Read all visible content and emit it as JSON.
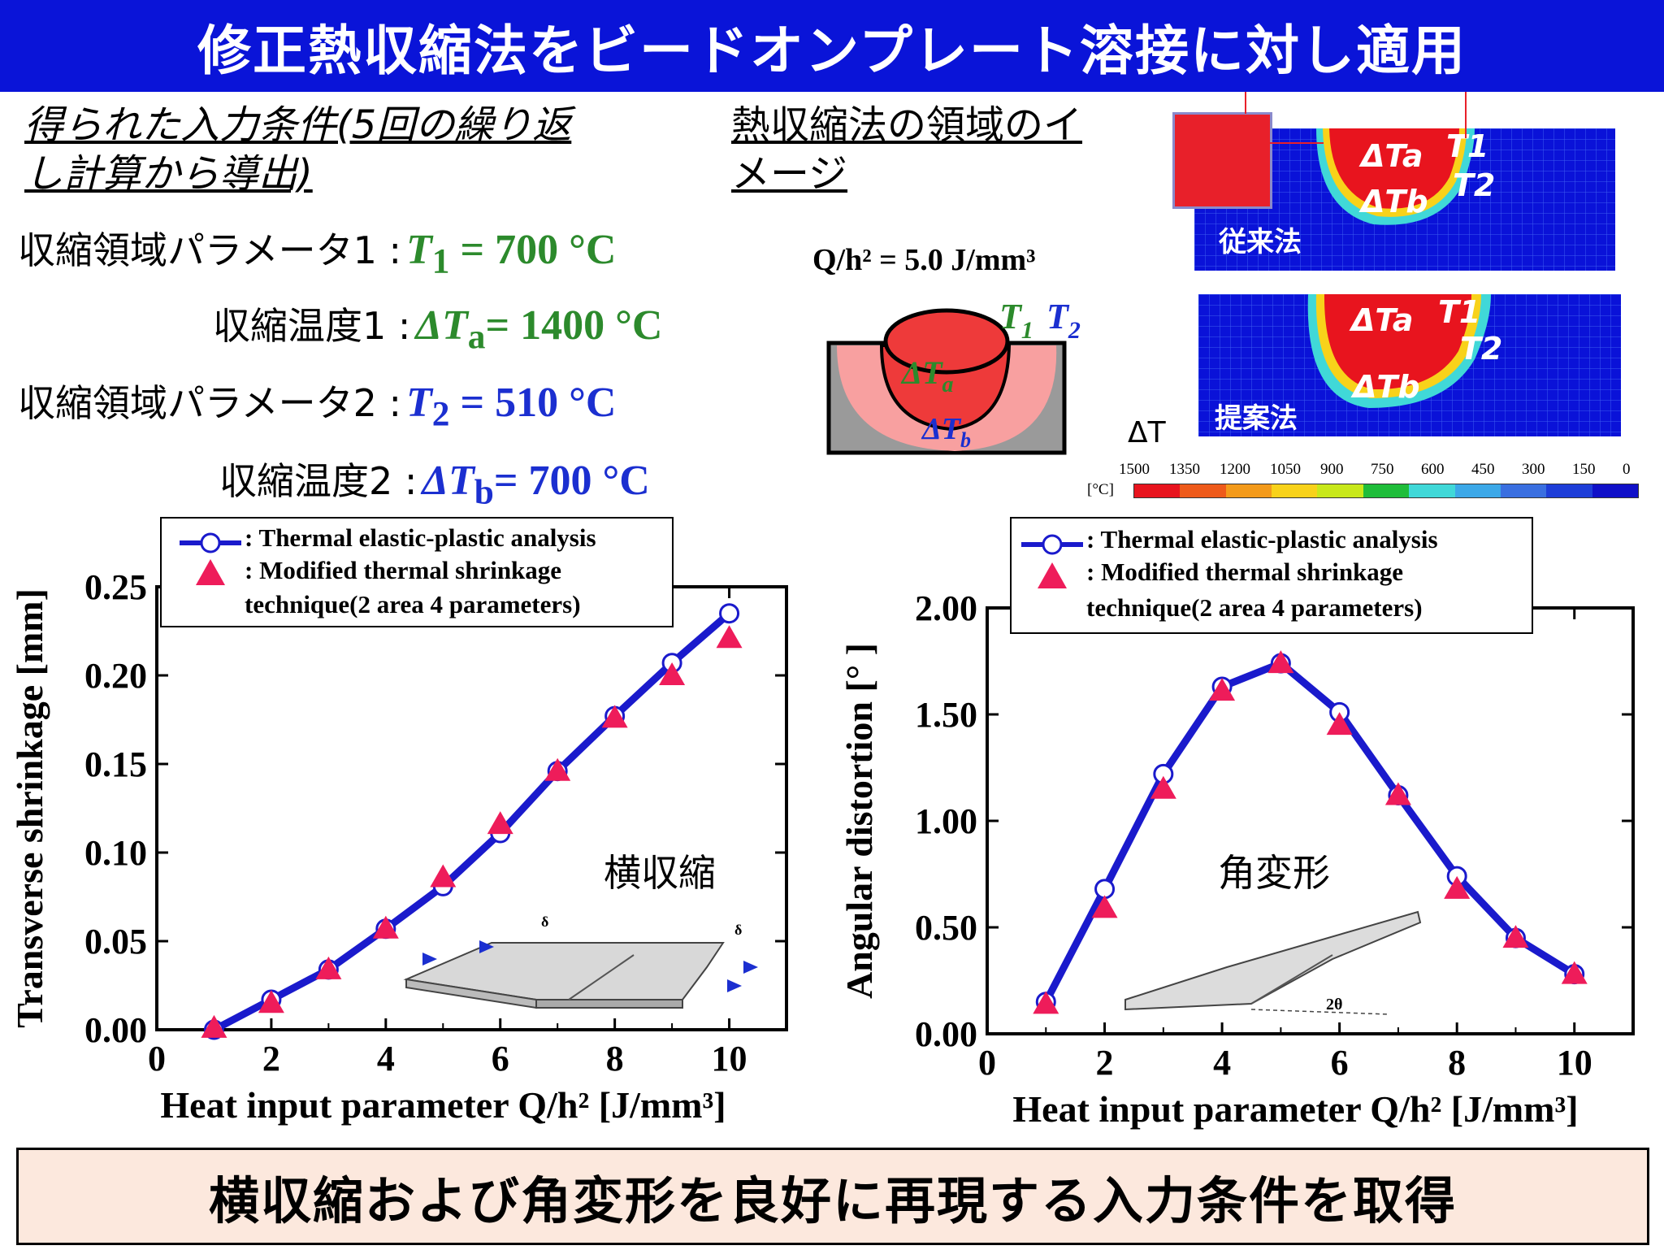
{
  "title": "修正熱収縮法をビードオンプレート溶接に対し適用",
  "left_heading": "得られた入力条件(5回の繰り返し計算から導出)",
  "left_heading_lines": [
    "得られた入力条件(5回の繰り返",
    "し計算から導出)"
  ],
  "params": [
    {
      "label": "収縮領域パラメータ1 :",
      "symbol": "T",
      "sub": "1",
      "value": " = 700 °C",
      "color": "green"
    },
    {
      "label": "収縮温度1 :",
      "symbol": "ΔT",
      "sub": "a",
      "value": "= 1400 °C",
      "color": "green"
    },
    {
      "label": "収縮領域パラメータ2 :",
      "symbol": "T",
      "sub": "2",
      "value": " = 510 °C",
      "color": "blue"
    },
    {
      "label": "収縮温度2 :",
      "symbol": "ΔT",
      "sub": "b",
      "value": "= 700 °C",
      "color": "blue"
    }
  ],
  "image_heading_lines": [
    "熱収縮法の領域のイ",
    "メージ"
  ],
  "q_condition": "Q/h² = 5.0 J/mm³",
  "schematic": {
    "t1": "T",
    "t1_sub": "1",
    "t2": "T",
    "t2_sub": "2",
    "dta": "ΔT",
    "dta_sub": "a",
    "dtb": "ΔT",
    "dtb_sub": "b"
  },
  "sim_top": {
    "label": "従来法",
    "dta": "ΔTa",
    "dtb": "ΔTb",
    "t1": "T1",
    "t2": "T2"
  },
  "sim_bottom": {
    "label": "提案法",
    "dta": "ΔTa",
    "dtb": "ΔTb",
    "t1": "T1",
    "t2": "T2"
  },
  "colorbar": {
    "title": "ΔT",
    "unit": "[°C]",
    "ticks": [
      "1500",
      "1350",
      "1200",
      "1050",
      "900",
      "750",
      "600",
      "450",
      "300",
      "150",
      "0"
    ],
    "colors": [
      "#e8141e",
      "#ee5a1a",
      "#f39a1a",
      "#f8d21a",
      "#c8e81a",
      "#1fbd3a",
      "#40d8d8",
      "#3ca8e8",
      "#3a6fe0",
      "#1e3ed8",
      "#1010c8"
    ]
  },
  "legend": {
    "tep": ": Thermal elastic-plastic analysis",
    "mts_line1": ": Modified thermal shrinkage",
    "mts_line2": "technique(2 area 4 parameters)"
  },
  "chart_data": [
    {
      "type": "line",
      "xlabel": "Heat input parameter Q/h² [J/mm³]",
      "ylabel": "Transverse shrinkage [mm]",
      "annotation": "横収縮",
      "xlim": [
        0,
        11
      ],
      "ylim": [
        0,
        0.25
      ],
      "xticks": [
        "0",
        "2",
        "4",
        "6",
        "8",
        "10"
      ],
      "yticks": [
        "0.00",
        "0.05",
        "0.10",
        "0.15",
        "0.20",
        "0.25"
      ],
      "series": [
        {
          "name": "Thermal elastic-plastic analysis",
          "marker": "circle",
          "x": [
            1,
            2,
            3,
            4,
            5,
            6,
            7,
            8,
            9,
            10
          ],
          "y": [
            0.0,
            0.017,
            0.034,
            0.057,
            0.081,
            0.111,
            0.146,
            0.177,
            0.207,
            0.235
          ]
        },
        {
          "name": "Modified thermal shrinkage technique(2 area 4 parameters)",
          "marker": "triangle",
          "x": [
            1,
            2,
            3,
            4,
            5,
            6,
            7,
            8,
            9,
            10
          ],
          "y": [
            0.001,
            0.015,
            0.034,
            0.057,
            0.086,
            0.116,
            0.146,
            0.176,
            0.2,
            0.221
          ]
        }
      ]
    },
    {
      "type": "line",
      "xlabel": "Heat input parameter Q/h² [J/mm³]",
      "ylabel": "Angular distortion [° ]",
      "annotation": "角変形",
      "xlim": [
        0,
        11
      ],
      "ylim": [
        0,
        2.0
      ],
      "xticks": [
        "0",
        "2",
        "4",
        "6",
        "8",
        "10"
      ],
      "yticks": [
        "0.00",
        "0.50",
        "1.00",
        "1.50",
        "2.00"
      ],
      "series": [
        {
          "name": "Thermal elastic-plastic analysis",
          "marker": "circle",
          "x": [
            1,
            2,
            3,
            4,
            5,
            6,
            7,
            8,
            9,
            10
          ],
          "y": [
            0.15,
            0.68,
            1.22,
            1.63,
            1.74,
            1.51,
            1.12,
            0.74,
            0.45,
            0.28
          ]
        },
        {
          "name": "Modified thermal shrinkage technique(2 area 4 parameters)",
          "marker": "triangle",
          "x": [
            1,
            2,
            3,
            4,
            5,
            6,
            7,
            8,
            9,
            10
          ],
          "y": [
            0.14,
            0.59,
            1.15,
            1.61,
            1.74,
            1.45,
            1.12,
            0.68,
            0.45,
            0.28
          ]
        }
      ]
    }
  ],
  "conclusion": "横収縮および角変形を良好に再現する入力条件を取得",
  "colors": {
    "banner": "#0a14d8",
    "line": "#1a1acc",
    "triangle": "#ee1c5a",
    "green": "#2c8a2c",
    "blue": "#1b2fd0"
  }
}
